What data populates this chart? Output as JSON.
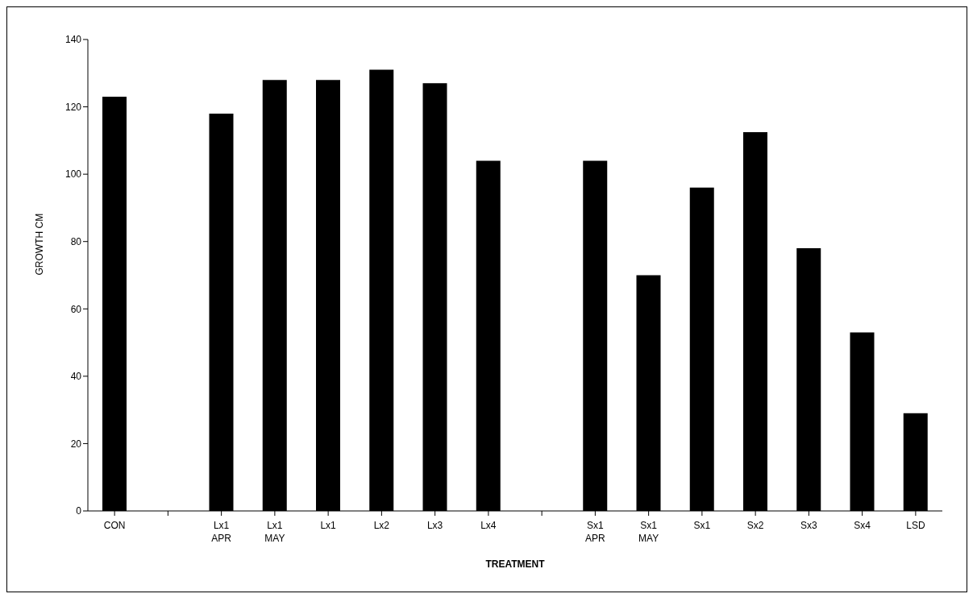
{
  "chart_data": {
    "type": "bar",
    "xlabel": "TREATMENT",
    "ylabel": "GROWTH CM",
    "categories": [
      "CON",
      null,
      "Lx1\nAPR",
      "Lx1\nMAY",
      "Lx1",
      "Lx2",
      "Lx3",
      "Lx4",
      null,
      "Sx1\nAPR",
      "Sx1\nMAY",
      "Sx1",
      "Sx2",
      "Sx3",
      "Sx4",
      "LSD"
    ],
    "values": [
      123,
      null,
      118,
      128,
      128,
      131,
      127,
      104,
      null,
      104,
      70,
      96,
      112.5,
      78,
      53,
      29
    ],
    "color": "#000000",
    "ylim": [
      0,
      140
    ],
    "yticks": [
      0,
      20,
      40,
      60,
      80,
      100,
      120,
      140
    ],
    "grid": false,
    "legend": false
  }
}
